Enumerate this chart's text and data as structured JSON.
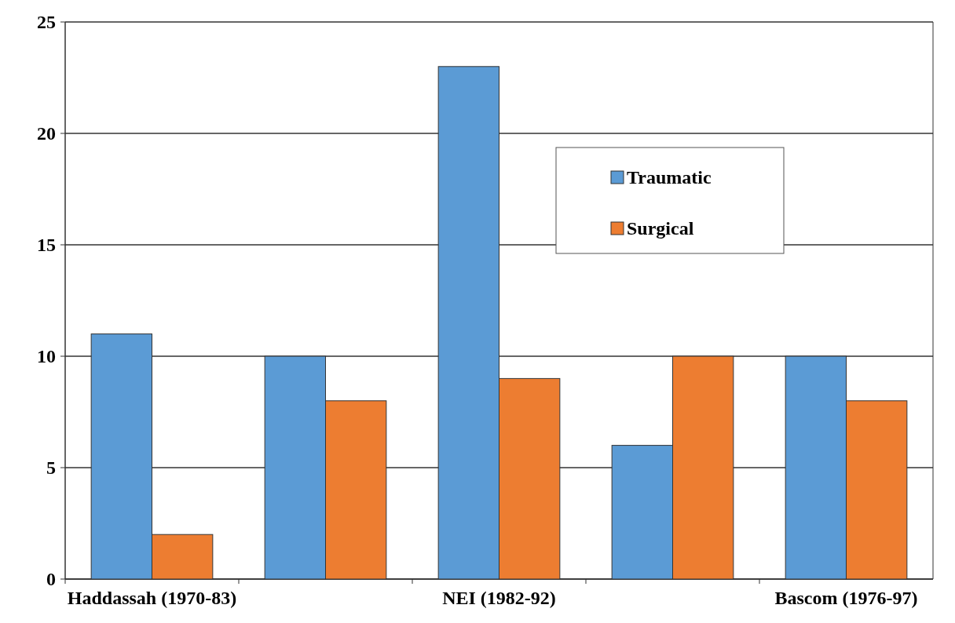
{
  "chart_data": {
    "type": "bar",
    "categories": [
      "Haddassah (1970-83)",
      null,
      "NEI (1982-92)",
      null,
      "Bascom (1976-97)"
    ],
    "series": [
      {
        "name": "Traumatic",
        "color": "#5b9bd5",
        "values": [
          11,
          10,
          23,
          6,
          10
        ]
      },
      {
        "name": "Surgical",
        "color": "#ed7d31",
        "values": [
          2,
          8,
          9,
          10,
          8
        ]
      }
    ],
    "ylim": [
      0,
      25
    ],
    "yticks": [
      0,
      5,
      10,
      15,
      20,
      25
    ],
    "grid": "y",
    "legend": "top right"
  }
}
